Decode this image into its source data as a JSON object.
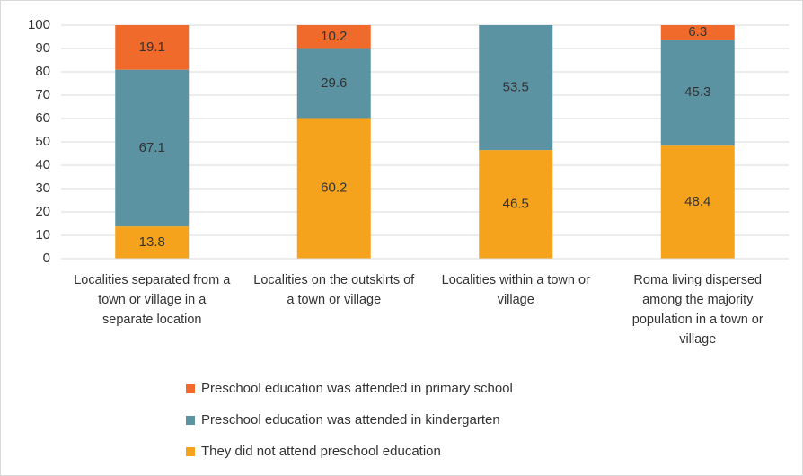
{
  "chart_data": {
    "type": "stacked_bar",
    "categories": [
      "Localities separated from a town or village in a separate location",
      "Localities on the outskirts of a town or village",
      "Localities within a town or village",
      "Roma living dispersed among the majority population in a town or village"
    ],
    "series": [
      {
        "name": "They did not attend preschool education",
        "color": "#f5a31c",
        "values": [
          13.8,
          60.2,
          46.5,
          48.4
        ]
      },
      {
        "name": "Preschool education was attended in kindergarten",
        "color": "#5b93a3",
        "values": [
          67.1,
          29.6,
          53.5,
          45.3
        ]
      },
      {
        "name": "Preschool education was attended in primary school",
        "color": "#f06a2b",
        "values": [
          19.1,
          10.2,
          null,
          6.3
        ]
      }
    ],
    "ylim": [
      0,
      100
    ],
    "yticks": [
      0,
      10,
      20,
      30,
      40,
      50,
      60,
      70,
      80,
      90,
      100
    ],
    "grid": true,
    "legend": "bottom"
  }
}
